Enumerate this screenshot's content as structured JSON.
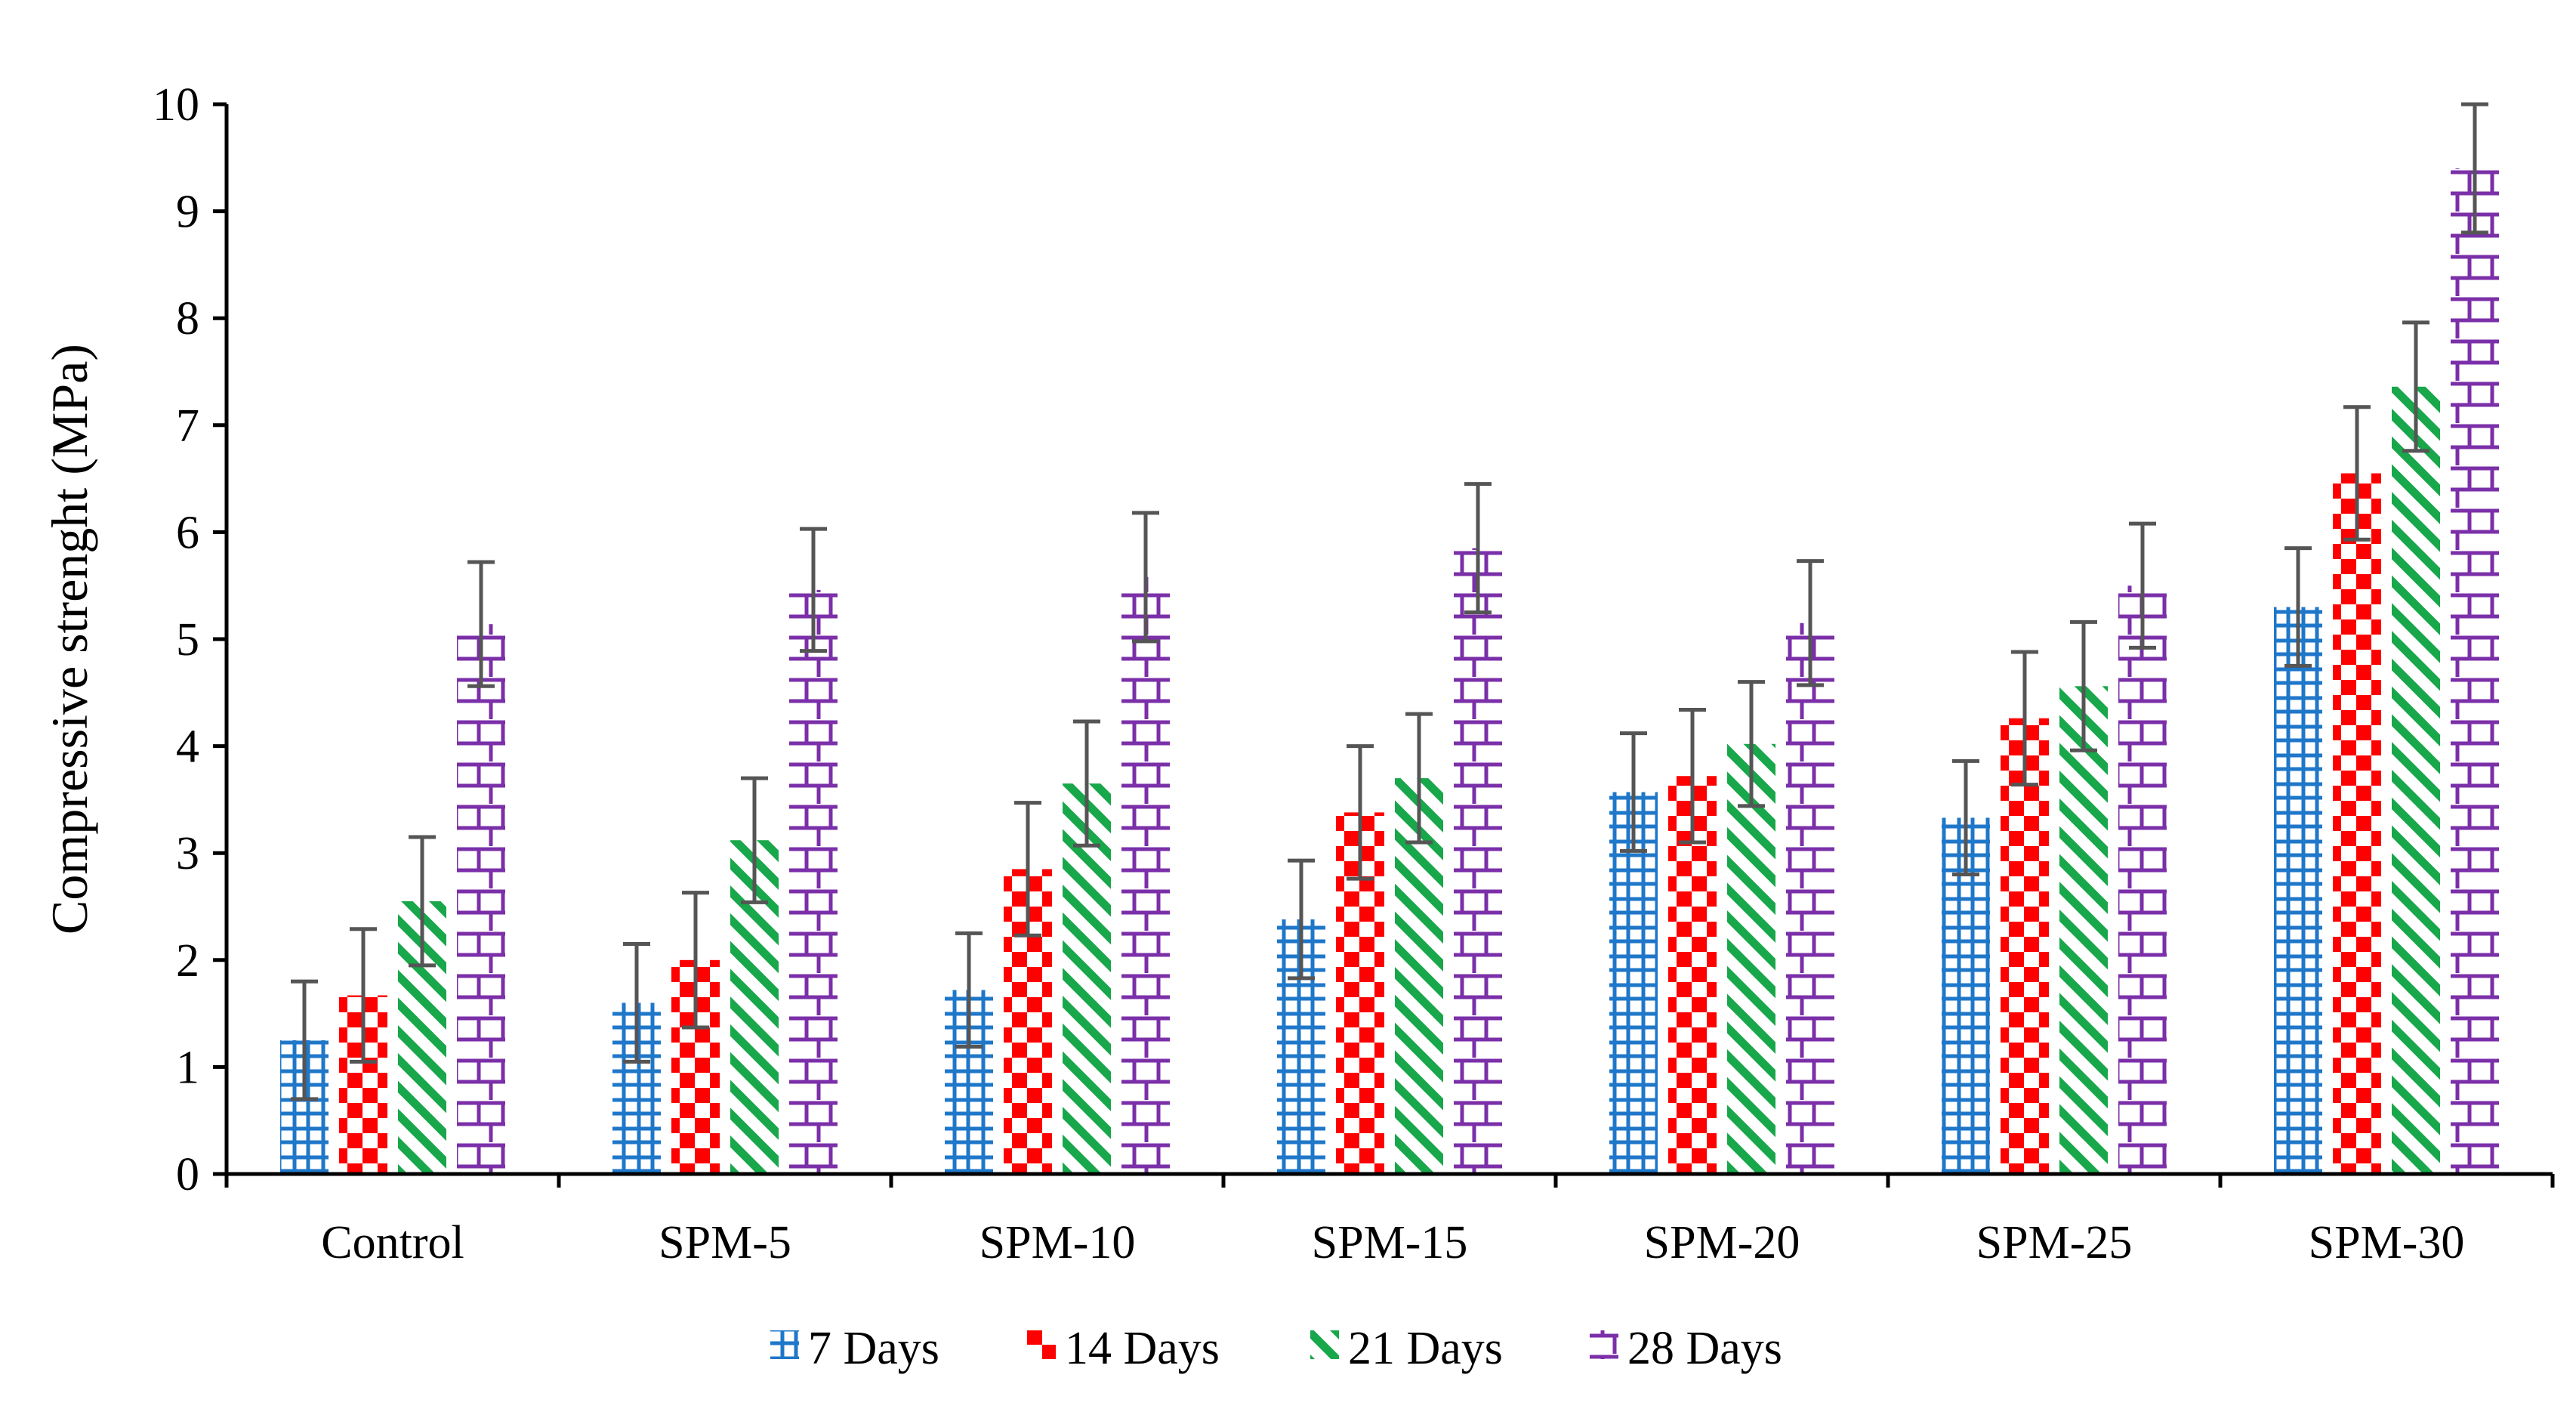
{
  "chart_data": {
    "type": "bar",
    "title": "",
    "xlabel": "",
    "ylabel": "Compressive strenght (MPa)",
    "ylim": [
      0,
      10
    ],
    "yticks": [
      0,
      1,
      2,
      3,
      4,
      5,
      6,
      7,
      8,
      9,
      10
    ],
    "grid": false,
    "legend_position": "bottom",
    "categories": [
      "Control",
      "SPM-5",
      "SPM-10",
      "SPM-15",
      "SPM-20",
      "SPM-25",
      "SPM-30"
    ],
    "series": [
      {
        "name": "7 Days",
        "color": "#1f77c9",
        "pattern": "grid",
        "values": [
          1.25,
          1.6,
          1.72,
          2.38,
          3.57,
          3.33,
          5.3
        ],
        "error": [
          0.55,
          0.55,
          0.53,
          0.55,
          0.55,
          0.53,
          0.55
        ]
      },
      {
        "name": "14 Days",
        "color": "#ff0000",
        "pattern": "checkerboard",
        "values": [
          1.67,
          2.0,
          2.85,
          3.38,
          3.72,
          4.26,
          6.55
        ],
        "error": [
          0.62,
          0.63,
          0.62,
          0.62,
          0.62,
          0.62,
          0.62
        ]
      },
      {
        "name": "21 Days",
        "color": "#18a74a",
        "pattern": "diagonal",
        "values": [
          2.55,
          3.12,
          3.65,
          3.7,
          4.02,
          4.56,
          7.36
        ],
        "error": [
          0.6,
          0.58,
          0.58,
          0.6,
          0.58,
          0.6,
          0.6
        ]
      },
      {
        "name": "28 Days",
        "color": "#7b2fa8",
        "pattern": "brick",
        "values": [
          5.14,
          5.46,
          5.58,
          5.85,
          5.15,
          5.5,
          9.4
        ],
        "error": [
          0.58,
          0.57,
          0.6,
          0.6,
          0.58,
          0.58,
          0.6
        ]
      }
    ]
  }
}
